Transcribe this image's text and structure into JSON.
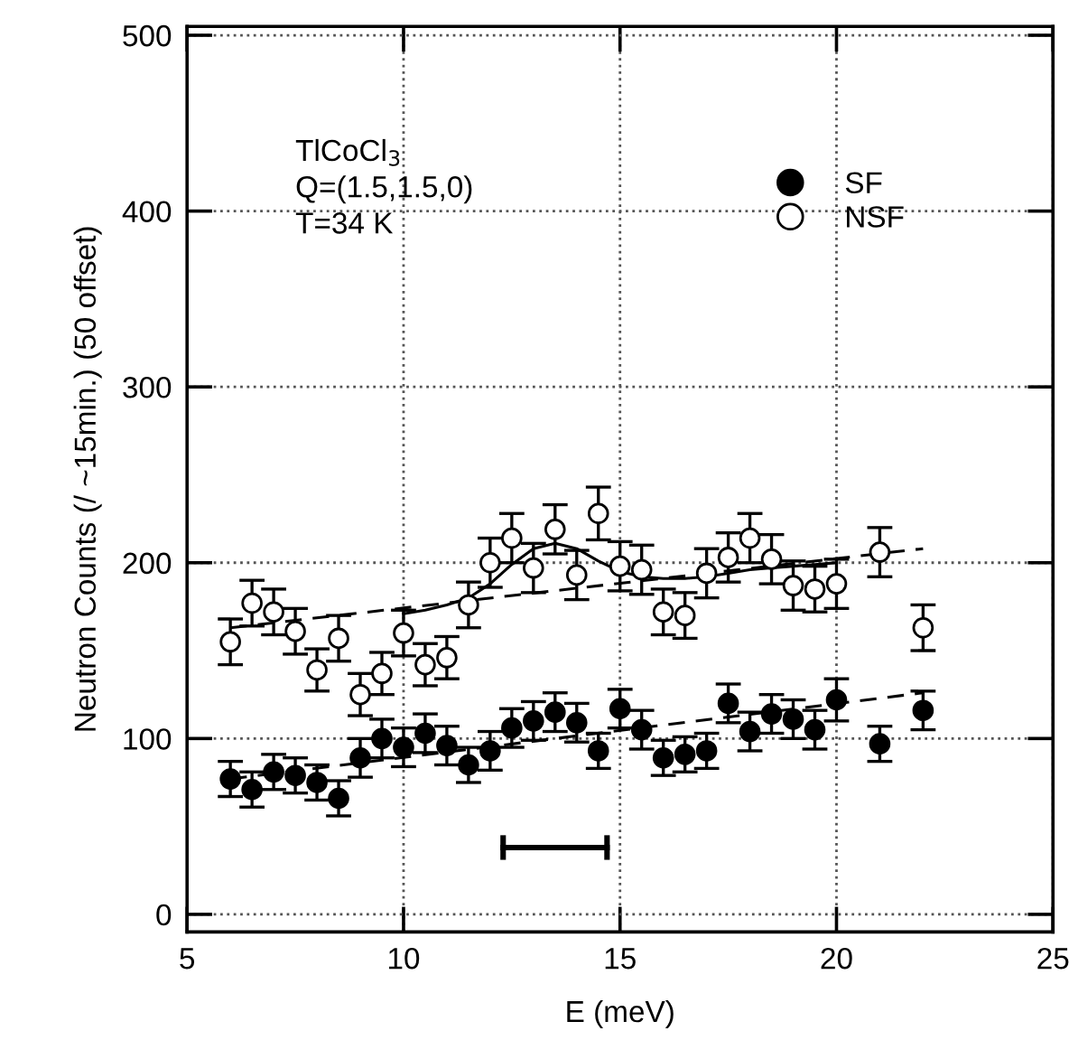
{
  "chart_data": {
    "type": "scatter",
    "xlabel": "E (meV)",
    "ylabel": "Neutron Counts (/ ~15min.) (50 offset)",
    "annotations": [
      "TlCoCl$_{3}$",
      "Q=(1.5,1.5,0)",
      "T=34 K"
    ],
    "x": [
      6,
      6.5,
      7,
      7.5,
      8,
      8.5,
      9,
      9.5,
      10,
      10.5,
      11,
      11.5,
      12,
      12.5,
      13,
      13.5,
      14,
      14.5,
      15,
      15.5,
      16,
      16.5,
      17,
      17.5,
      18,
      18.5,
      19,
      19.5,
      20,
      21,
      22
    ],
    "series": [
      {
        "name": "SF",
        "color": "#000000",
        "marker": "circle",
        "values": [
          77,
          71,
          81,
          79,
          75,
          66,
          89,
          100,
          95,
          103,
          96,
          85,
          93,
          106,
          110,
          115,
          109,
          93,
          117,
          105,
          89,
          91,
          93,
          120,
          104,
          114,
          111,
          105,
          122,
          97,
          116
        ],
        "errors": [
          10,
          10,
          10,
          10,
          10,
          10,
          11,
          11,
          11,
          11,
          11,
          10,
          11,
          11,
          11,
          11,
          11,
          10,
          11,
          11,
          10,
          10,
          10,
          11,
          11,
          11,
          11,
          11,
          12,
          10,
          11
        ]
      },
      {
        "name": "NSF",
        "color": "#000000",
        "marker": "circle",
        "values": [
          155,
          177,
          172,
          161,
          139,
          157,
          125,
          137,
          160,
          142,
          146,
          176,
          200,
          214,
          197,
          219,
          193,
          228,
          198,
          196,
          172,
          170,
          194,
          203,
          214,
          202,
          187,
          185,
          188,
          206,
          163
        ],
        "errors": [
          13,
          13,
          13,
          13,
          12,
          13,
          12,
          12,
          13,
          12,
          12,
          13,
          14,
          14,
          14,
          14,
          14,
          15,
          14,
          14,
          13,
          13,
          14,
          14,
          14,
          14,
          14,
          13,
          14,
          14,
          13
        ]
      },
      {
        "type": "line",
        "color": "#000000",
        "line_style": "dashed",
        "x": [
          6,
          22
        ],
        "values": [
          77,
          126
        ]
      },
      {
        "type": "line",
        "color": "#000000",
        "line_style": "dashed",
        "x": [
          6,
          22
        ],
        "values": [
          163,
          208
        ]
      },
      {
        "type": "line",
        "color": "#000000",
        "line_style": "solid",
        "x": [
          10,
          10.5,
          11,
          11.5,
          12,
          12.5,
          13,
          13.5,
          14,
          14.5,
          15,
          15.5,
          16,
          16.5,
          17,
          17.5,
          18,
          18.5,
          19,
          19.5,
          20
        ],
        "values": [
          171,
          173,
          176,
          180,
          188,
          199,
          208,
          211,
          208,
          201,
          195,
          192,
          191,
          191,
          192,
          194,
          196,
          197,
          198,
          199,
          200
        ]
      },
      {
        "type": "line",
        "color": "#000000",
        "line_style": "solid",
        "x": [
          12.3,
          14.7
        ],
        "values": [
          38,
          38
        ],
        "errors": [
          7,
          7
        ]
      }
    ],
    "xlim": [
      5,
      25
    ],
    "ylim": [
      -10,
      505
    ],
    "xticks": [
      5,
      10,
      15,
      20,
      25
    ],
    "yticks": [
      0,
      100,
      200,
      300,
      400,
      500
    ],
    "grid": true,
    "legend": "top right"
  }
}
